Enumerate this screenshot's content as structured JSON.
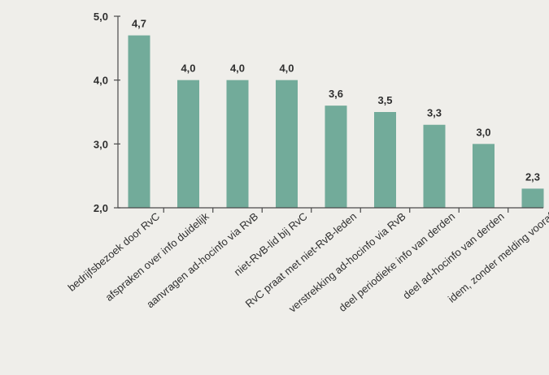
{
  "colors": {
    "background": "#efeeea",
    "bar": "#72ab9a",
    "axis": "#4a4a4a",
    "text": "#2f2f2f"
  },
  "chart_data": {
    "type": "bar",
    "title": "",
    "xlabel": "",
    "ylabel": "",
    "ylim": [
      2.0,
      5.0
    ],
    "yticks": [
      2.0,
      3.0,
      4.0,
      5.0
    ],
    "ytick_labels": [
      "2,0",
      "3,0",
      "4,0",
      "5,0"
    ],
    "grid": false,
    "legend": "none",
    "categories": [
      "bedrijfsbezoek door RvC",
      "afspraken over info duidelijk",
      "aanvragen ad-hocinfo via RvB",
      "niet-RvB-lid bij RvC",
      "RvC praat met niet-RvB-leden",
      "verstrekking ad-hocinfo via RvB",
      "deel periodieke info van derden",
      "deel ad-hocinfo van derden",
      "idem, zonder melding vooraf"
    ],
    "values": [
      4.7,
      4.0,
      4.0,
      4.0,
      3.6,
      3.5,
      3.3,
      3.0,
      2.3
    ],
    "value_labels": [
      "4,7",
      "4,0",
      "4,0",
      "4,0",
      "3,6",
      "3,5",
      "3,3",
      "3,0",
      "2,3"
    ]
  }
}
